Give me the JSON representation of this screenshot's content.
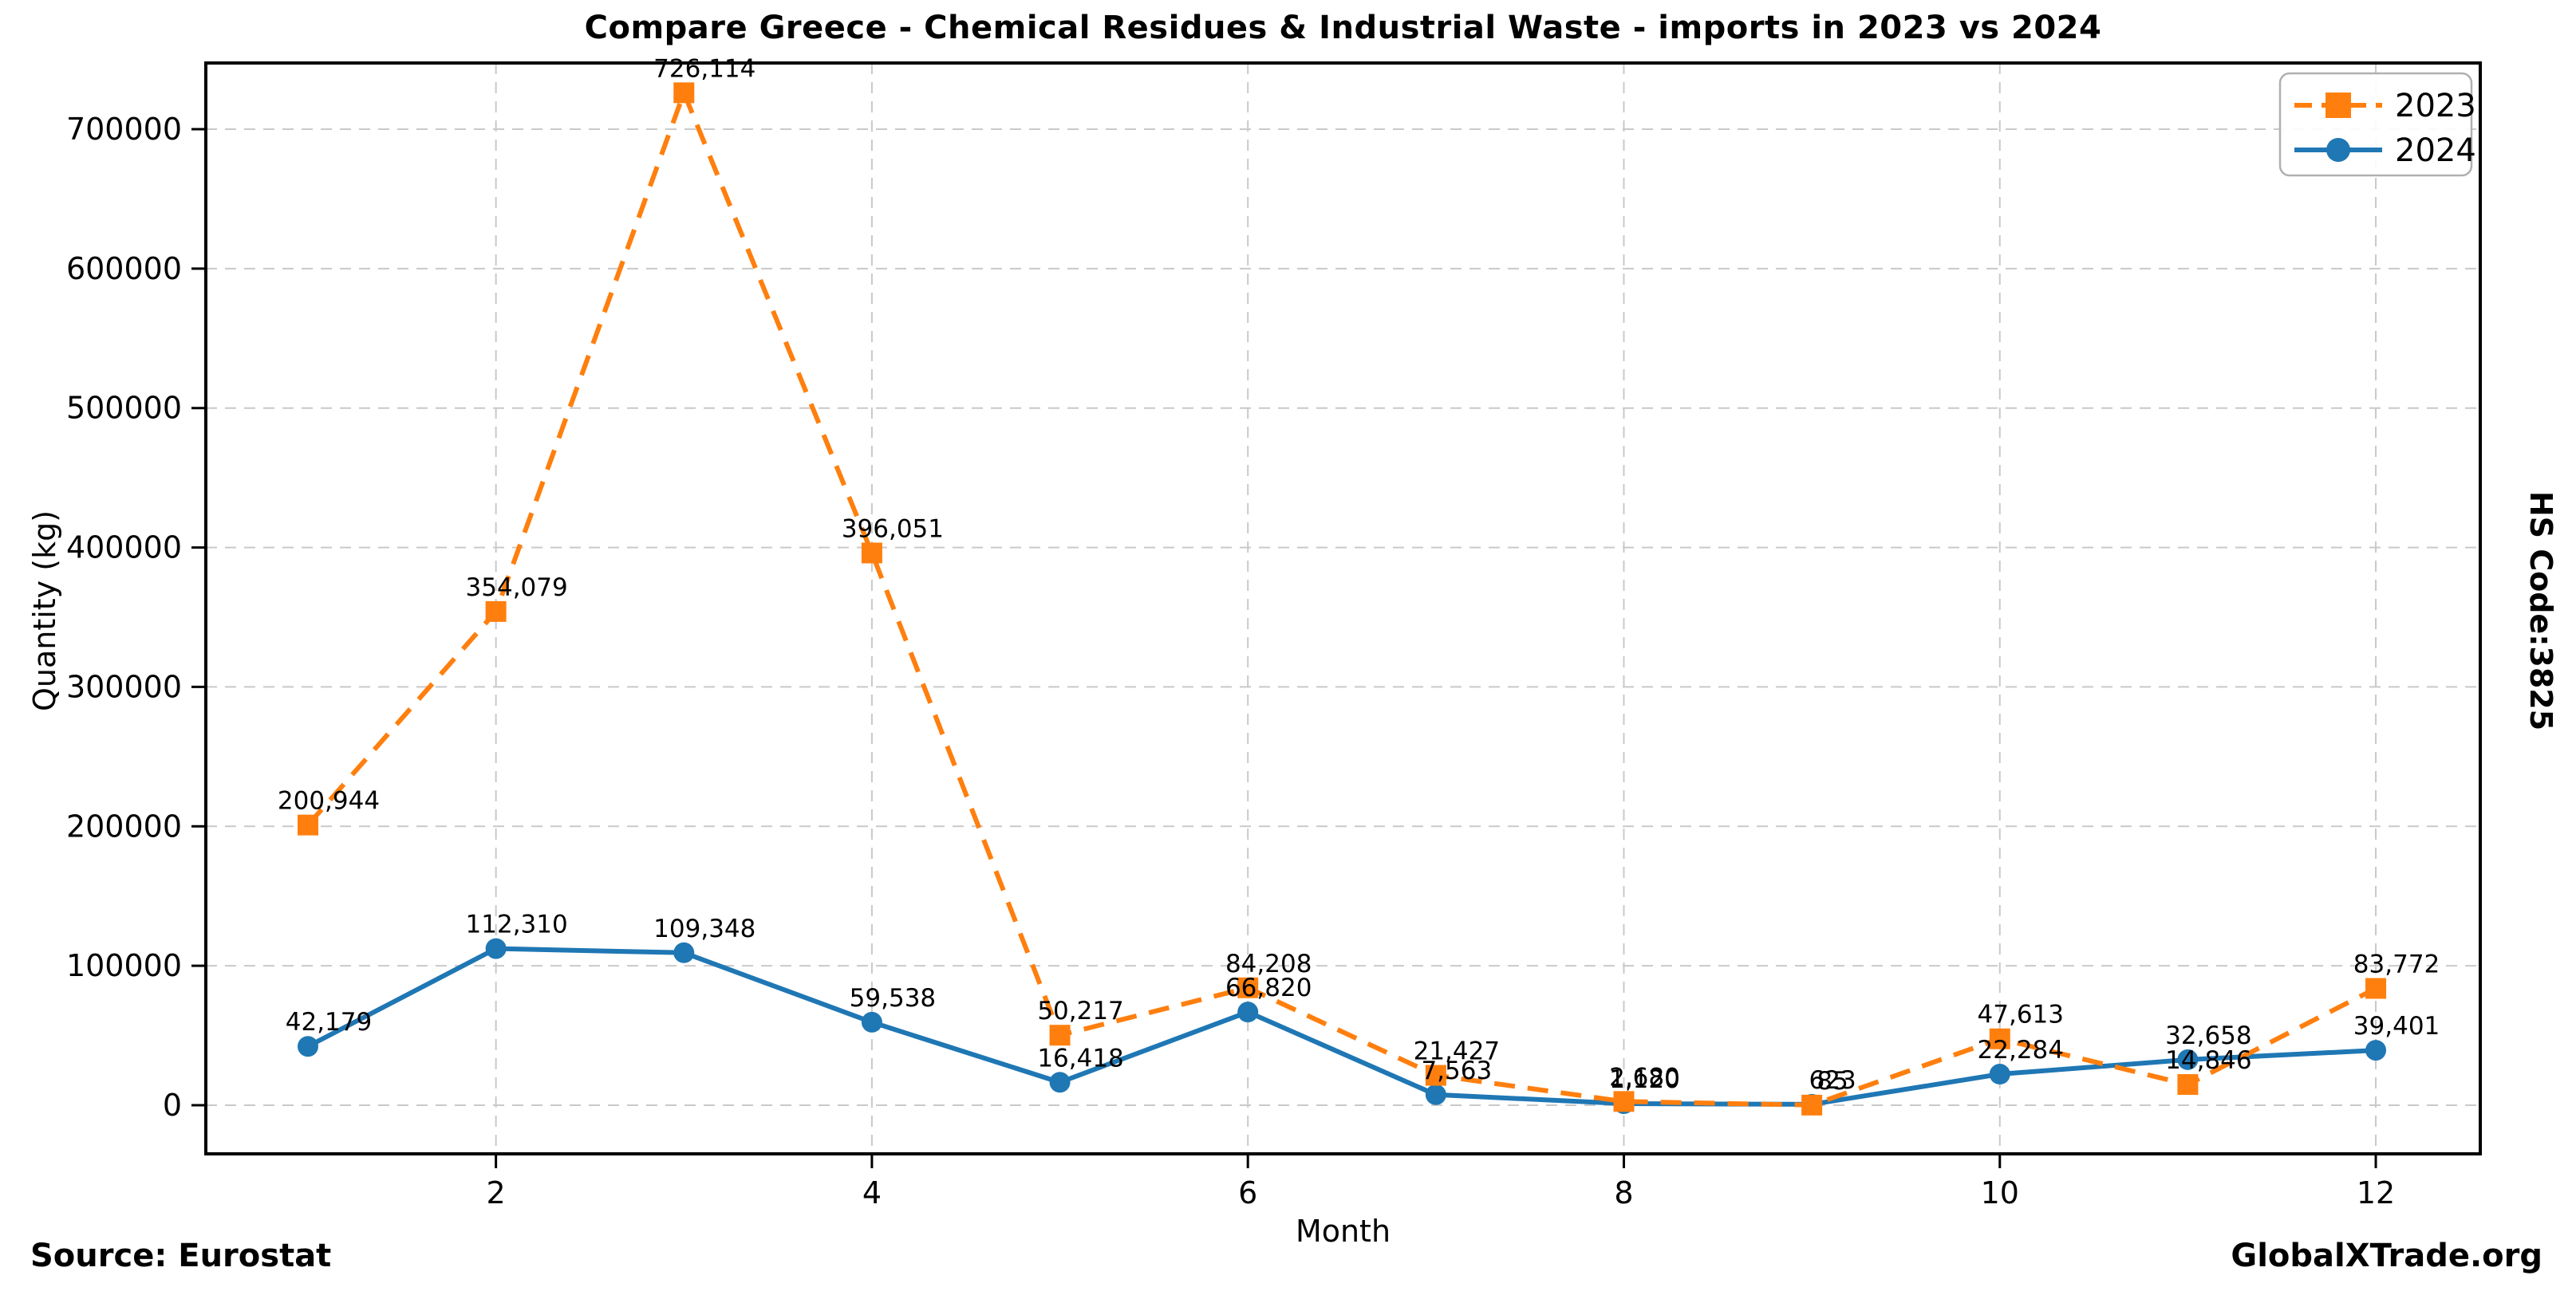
{
  "header": {
    "title": "Compare Greece - Chemical Residues & Industrial Waste - imports in 2023 vs 2024"
  },
  "side": {
    "hs_code": "HS Code:3825"
  },
  "footer": {
    "source": "Source: Eurostat",
    "brand": "GlobalXTrade.org"
  },
  "chart_data": {
    "type": "line",
    "x": [
      1,
      2,
      3,
      4,
      5,
      6,
      7,
      8,
      9,
      10,
      11,
      12
    ],
    "xticks": [
      2,
      4,
      6,
      8,
      10,
      12
    ],
    "yticks": [
      0,
      100000,
      200000,
      300000,
      400000,
      500000,
      600000,
      700000
    ],
    "ylim": [
      -35000,
      748000
    ],
    "xlabel": "Month",
    "ylabel": "Quantity (kg)",
    "grid": true,
    "legend_position": "upper right",
    "colors": {
      "y2024": "#1f77b4",
      "y2023": "#ff7f0e",
      "grid": "#c9c9c9",
      "spine": "#000000"
    },
    "series": [
      {
        "name": "2024",
        "color": "#1f77b4",
        "style": "solid",
        "marker": "circle",
        "values": [
          42179,
          112310,
          109348,
          59538,
          16418,
          66820,
          7563,
          1120,
          623,
          22284,
          32658,
          39401
        ]
      },
      {
        "name": "2023",
        "color": "#ff7f0e",
        "style": "dashed",
        "marker": "square",
        "values": [
          200944,
          354079,
          726114,
          396051,
          50217,
          84208,
          21427,
          2680,
          85,
          47613,
          14846,
          83772
        ]
      }
    ]
  }
}
